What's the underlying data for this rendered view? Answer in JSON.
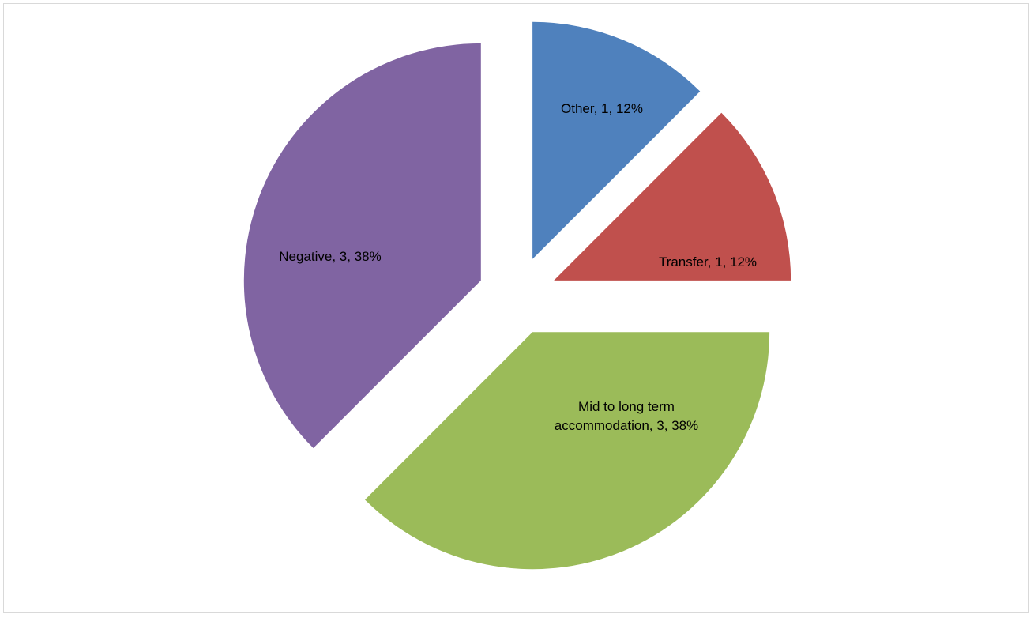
{
  "chart_data": {
    "type": "pie",
    "categories": [
      "Other",
      "Transfer",
      "Mid to long term accommodation",
      "Negative"
    ],
    "values": [
      1,
      1,
      3,
      3
    ],
    "percentages": [
      "12%",
      "12%",
      "38%",
      "38%"
    ],
    "colors": [
      "#4f81bd",
      "#c0504d",
      "#9bbb59",
      "#8064a2"
    ],
    "data_labels": [
      [
        "Other, 1, 12%"
      ],
      [
        "Transfer, 1, 12%"
      ],
      [
        "Mid to long term",
        "accommodation, 3, 38%"
      ],
      [
        "Negative, 3, 38%"
      ]
    ],
    "exploded": true,
    "legend": "none"
  }
}
